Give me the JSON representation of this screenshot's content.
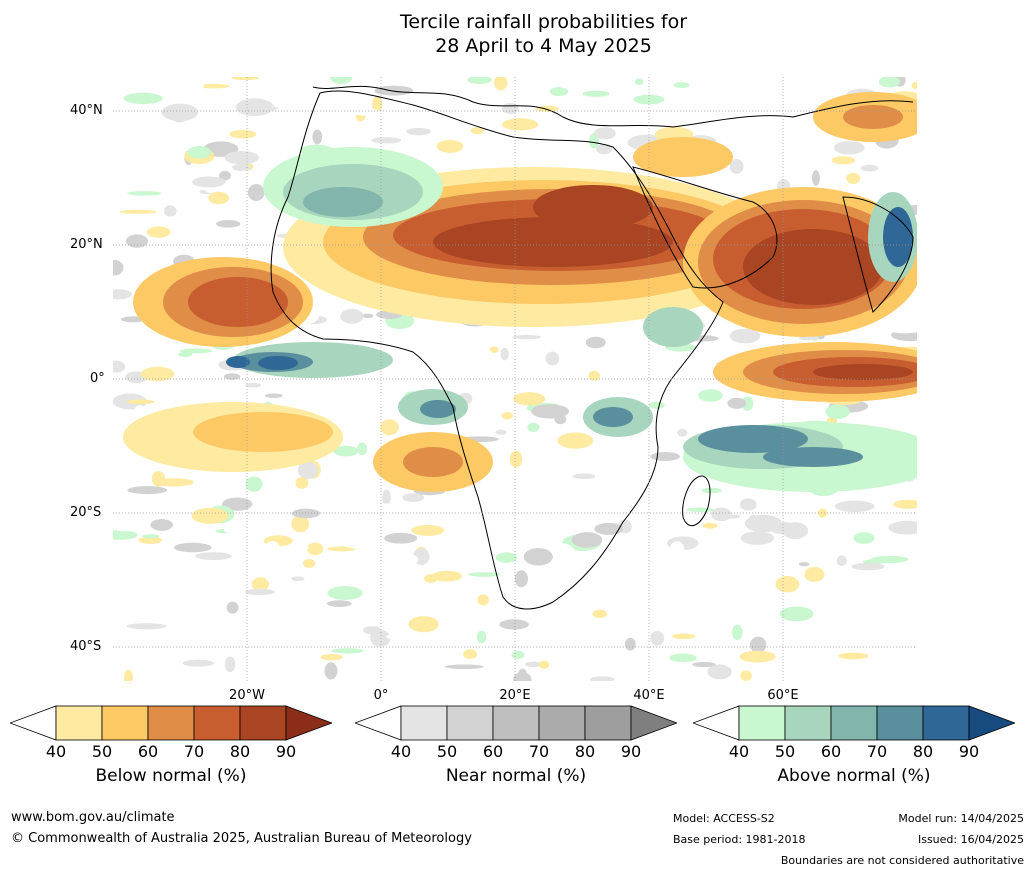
{
  "title": {
    "line1": "Tercile rainfall probabilities for",
    "line2": "28 April to 4 May 2025"
  },
  "map": {
    "lat_labels": [
      "40°N",
      "20°N",
      "0°",
      "20°S",
      "40°S"
    ],
    "lon_labels": [
      "20°W",
      "0°",
      "20°E",
      "40°E",
      "60°E"
    ],
    "region": "Africa and surrounding oceans"
  },
  "colorbars": [
    {
      "label": "Below normal (%)",
      "ticks": [
        "40",
        "50",
        "60",
        "70",
        "80",
        "90"
      ],
      "colors": [
        "#ffffff",
        "#feeaa0",
        "#fdc965",
        "#e08d47",
        "#c85e30",
        "#a94522",
        "#8c2d1a"
      ]
    },
    {
      "label": "Near normal (%)",
      "ticks": [
        "40",
        "50",
        "60",
        "70",
        "80",
        "90"
      ],
      "colors": [
        "#ffffff",
        "#e4e4e4",
        "#d2d2d2",
        "#bfbfbf",
        "#ababab",
        "#9e9e9e",
        "#7f7f7f"
      ]
    },
    {
      "label": "Above normal (%)",
      "ticks": [
        "40",
        "50",
        "60",
        "70",
        "80",
        "90"
      ],
      "colors": [
        "#ffffff",
        "#c9f7cf",
        "#a7d5bd",
        "#82b6ac",
        "#5a8f9d",
        "#2f6796",
        "#174b7f"
      ]
    }
  ],
  "footer": {
    "website": "www.bom.gov.au/climate",
    "copyright": "© Commonwealth of Australia 2025, Australian Bureau of Meteorology",
    "model": "Model: ACCESS-S2",
    "base_period": "Base period: 1981-2018",
    "model_run": "Model run: 14/04/2025",
    "issued": "Issued: 16/04/2025",
    "disclaimer": "Boundaries are not considered authoritative"
  }
}
